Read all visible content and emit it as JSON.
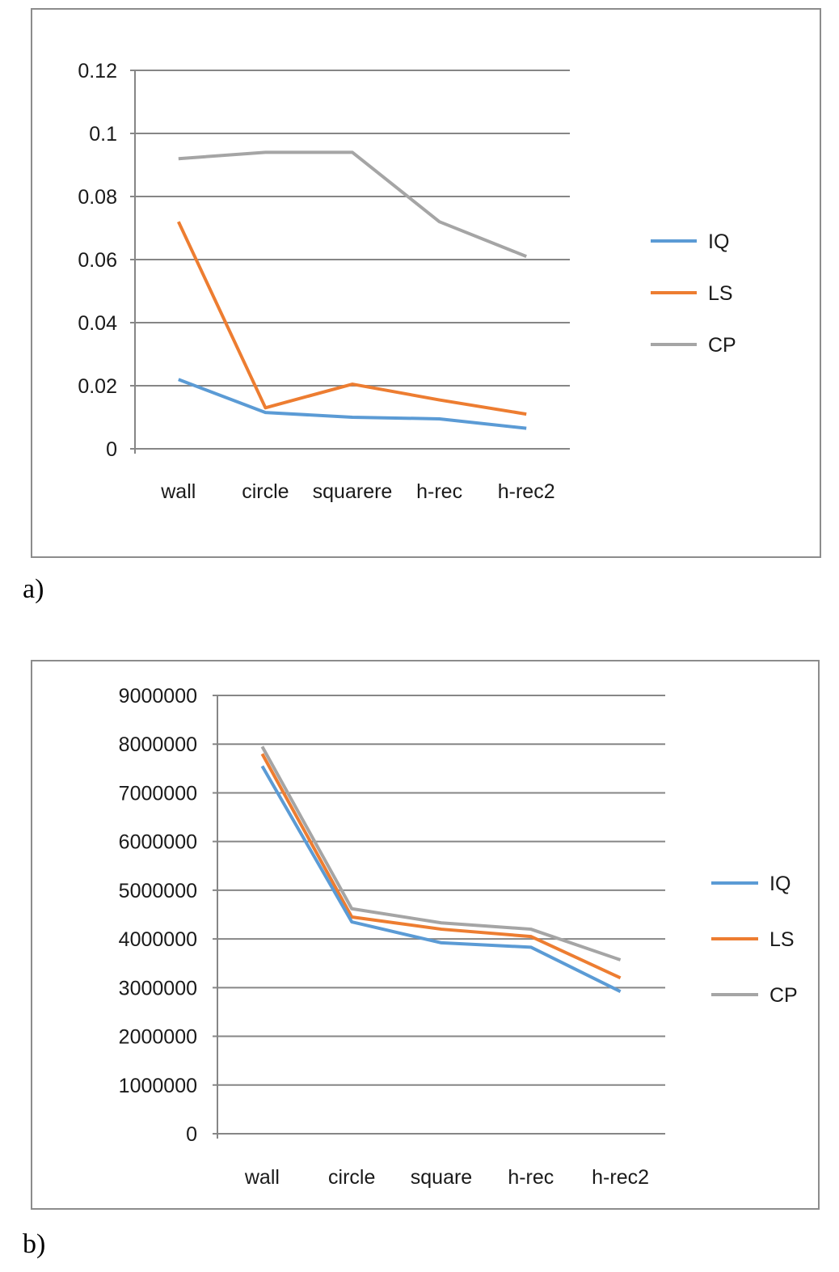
{
  "colors": {
    "IQ": "#5b9bd5",
    "LS": "#ed7d31",
    "CP": "#a5a5a5",
    "grid": "#868686"
  },
  "panels": {
    "a": {
      "label": "a)"
    },
    "b": {
      "label": "b)"
    }
  },
  "chart_data": [
    {
      "id": "a",
      "type": "line",
      "title": "",
      "xlabel": "",
      "ylabel": "",
      "categories": [
        "wall",
        "circle",
        "squarere",
        "h-rec",
        "h-rec2"
      ],
      "ylim": [
        0,
        0.12
      ],
      "yticks": [
        "0",
        "0.02",
        "0.04",
        "0.06",
        "0.08",
        "0.1",
        "0.12"
      ],
      "grid": true,
      "legend_position": "right",
      "series": [
        {
          "name": "IQ",
          "values": [
            0.022,
            0.0115,
            0.01,
            0.0095,
            0.0065
          ]
        },
        {
          "name": "LS",
          "values": [
            0.072,
            0.013,
            0.0205,
            0.0155,
            0.011
          ]
        },
        {
          "name": "CP",
          "values": [
            0.092,
            0.094,
            0.094,
            0.072,
            0.061
          ]
        }
      ]
    },
    {
      "id": "b",
      "type": "line",
      "title": "",
      "xlabel": "",
      "ylabel": "",
      "categories": [
        "wall",
        "circle",
        "square",
        "h-rec",
        "h-rec2"
      ],
      "ylim": [
        0,
        9000000
      ],
      "yticks": [
        "0",
        "1000000",
        "2000000",
        "3000000",
        "4000000",
        "5000000",
        "6000000",
        "7000000",
        "8000000",
        "9000000"
      ],
      "grid": true,
      "legend_position": "right",
      "series": [
        {
          "name": "IQ",
          "values": [
            7550000,
            4350000,
            3920000,
            3830000,
            2920000
          ]
        },
        {
          "name": "LS",
          "values": [
            7800000,
            4450000,
            4200000,
            4050000,
            3200000
          ]
        },
        {
          "name": "CP",
          "values": [
            7950000,
            4620000,
            4330000,
            4200000,
            3570000
          ]
        }
      ]
    }
  ]
}
